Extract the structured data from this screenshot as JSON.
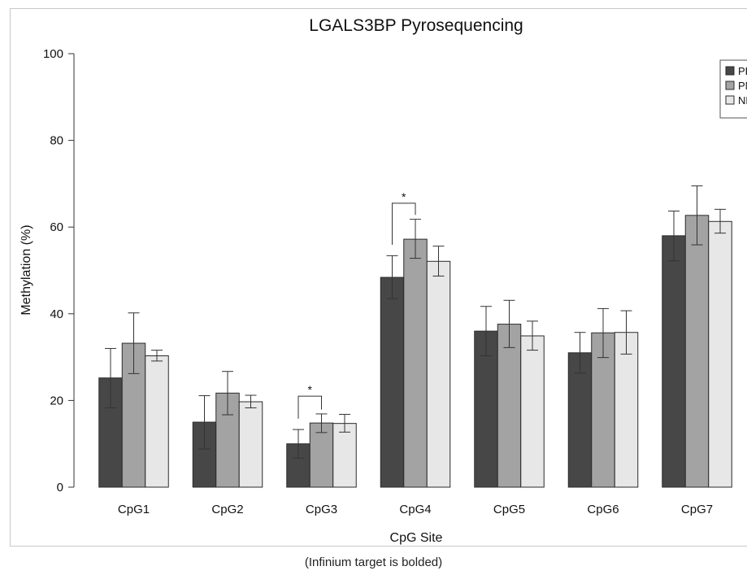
{
  "chart_data": {
    "type": "bar",
    "title": "LGALS3BP Pyrosequencing",
    "xlabel": "CpG Site",
    "ylabel": "Methylation (%)",
    "ylim": [
      0,
      100
    ],
    "yticks": [
      0,
      20,
      40,
      60,
      80,
      100
    ],
    "grid": false,
    "legend_position": "top-right",
    "categories": [
      "CpG1",
      "CpG2",
      "CpG3",
      "CpG4",
      "CpG5",
      "CpG6",
      "CpG7"
    ],
    "series": [
      {
        "name": "PP",
        "color": "#474747",
        "values": [
          25.2,
          15.0,
          10.0,
          48.4,
          36.0,
          31.0,
          58.0
        ],
        "error_low": [
          18.3,
          8.8,
          6.7,
          43.5,
          30.3,
          26.3,
          52.2
        ],
        "error_high": [
          32.0,
          21.1,
          13.3,
          53.4,
          41.7,
          35.7,
          63.7
        ]
      },
      {
        "name": "PN",
        "color": "#a3a3a3",
        "values": [
          33.2,
          21.7,
          14.8,
          57.2,
          37.6,
          35.6,
          62.7
        ],
        "error_low": [
          26.2,
          16.7,
          12.6,
          52.8,
          32.2,
          29.9,
          55.9
        ],
        "error_high": [
          40.2,
          26.7,
          16.9,
          61.8,
          43.1,
          41.2,
          69.5
        ]
      },
      {
        "name": "NN",
        "color": "#e7e7e7",
        "values": [
          30.3,
          19.7,
          14.7,
          52.1,
          34.9,
          35.7,
          61.3
        ],
        "error_low": [
          29.1,
          18.3,
          12.7,
          48.7,
          31.6,
          30.7,
          58.6
        ],
        "error_high": [
          31.6,
          21.2,
          16.8,
          55.6,
          38.3,
          40.7,
          64.1
        ]
      }
    ],
    "significance": [
      {
        "category": "CpG3",
        "from_series": "PP",
        "to_series": "PN",
        "label": "*",
        "y": 21.0
      },
      {
        "category": "CpG4",
        "from_series": "PP",
        "to_series": "PN",
        "label": "*",
        "y": 65.5
      }
    ]
  },
  "caption": "(Infinium target is bolded)"
}
